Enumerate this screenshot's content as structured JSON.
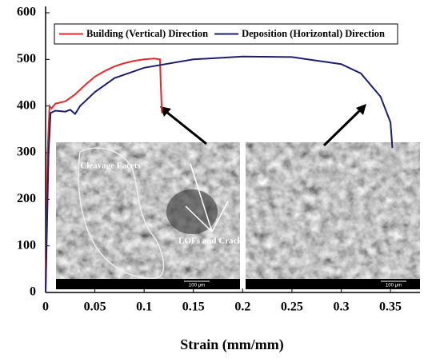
{
  "chart_data": {
    "type": "line",
    "x_label": "Strain (mm/mm)",
    "xlim": [
      0,
      0.38
    ],
    "ylim": [
      0,
      600
    ],
    "xticks": [
      0,
      0.05,
      0.1,
      0.15,
      0.2,
      0.25,
      0.3,
      0.35
    ],
    "yticks": [
      0,
      100,
      200,
      300,
      400,
      500,
      600
    ],
    "series": [
      {
        "name": "Building (Vertical) Direction",
        "color": "#e8282b",
        "x": [
          0,
          0.002,
          0.004,
          0.006,
          0.01,
          0.02,
          0.03,
          0.04,
          0.05,
          0.06,
          0.07,
          0.08,
          0.09,
          0.1,
          0.11,
          0.116,
          0.117,
          0.118
        ],
        "values": [
          0,
          300,
          400,
          395,
          405,
          410,
          425,
          445,
          463,
          475,
          485,
          492,
          497,
          500,
          502,
          500,
          440,
          385
        ]
      },
      {
        "name": "Deposition (Horizontal) Direction",
        "color": "#1d1f6e",
        "x": [
          0,
          0.003,
          0.005,
          0.01,
          0.02,
          0.025,
          0.03,
          0.035,
          0.05,
          0.07,
          0.1,
          0.15,
          0.2,
          0.25,
          0.3,
          0.32,
          0.34,
          0.35,
          0.352
        ],
        "values": [
          0,
          300,
          385,
          390,
          388,
          392,
          383,
          400,
          430,
          460,
          482,
          500,
          506,
          505,
          490,
          470,
          420,
          365,
          310
        ]
      }
    ],
    "annotations": [
      "Cleavage Facets",
      "LOFs and Cracks",
      "100 μm",
      "100 μm"
    ]
  }
}
